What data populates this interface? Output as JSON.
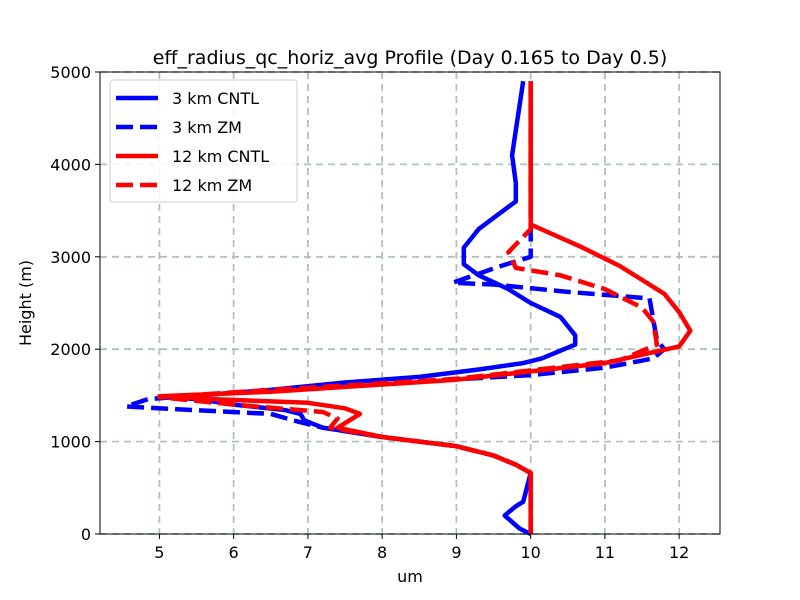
{
  "chart_data": {
    "type": "line",
    "title": "eff_radius_qc_horiz_avg Profile (Day 0.165 to Day 0.5)",
    "xlabel": "um",
    "ylabel": "Height (m)",
    "xlim": [
      4.2,
      12.55
    ],
    "ylim": [
      0,
      5000
    ],
    "xticks": [
      5,
      6,
      7,
      8,
      9,
      10,
      11,
      12
    ],
    "yticks": [
      0,
      1000,
      2000,
      3000,
      4000,
      5000
    ],
    "grid": true,
    "legend": "upper-left",
    "series": [
      {
        "name": "3 km CNTL",
        "color": "#0000ff",
        "linestyle": "solid",
        "x": [
          10.0,
          9.85,
          9.65,
          9.8,
          9.9,
          10.0,
          9.8,
          9.5,
          9.0,
          8.0,
          7.2,
          6.95,
          6.9,
          6.7,
          6.0,
          5.6,
          5.2,
          6.5,
          7.5,
          8.5,
          9.3,
          9.9,
          10.15,
          10.45,
          10.6,
          10.6,
          10.4,
          10.0,
          9.7,
          9.3,
          9.1,
          9.1,
          9.3,
          9.55,
          9.8,
          9.8,
          9.75,
          9.9
        ],
        "y": [
          0,
          60,
          200,
          300,
          350,
          660,
          750,
          850,
          950,
          1050,
          1150,
          1230,
          1300,
          1340,
          1400,
          1450,
          1480,
          1560,
          1640,
          1700,
          1780,
          1850,
          1900,
          2000,
          2050,
          2150,
          2350,
          2500,
          2650,
          2800,
          2920,
          3100,
          3300,
          3450,
          3600,
          3800,
          4100,
          4900
        ]
      },
      {
        "name": "3 km ZM",
        "color": "#0000ff",
        "linestyle": "dashed",
        "x": [
          10.0,
          10.0,
          9.8,
          9.5,
          9.0,
          8.0,
          7.2,
          6.8,
          6.5,
          5.5,
          4.55,
          4.85,
          6.5,
          8.5,
          10.0,
          11.0,
          11.65,
          11.8,
          11.7,
          11.6,
          10.5,
          9.5,
          8.95,
          9.6,
          10.0,
          10.0,
          10.0,
          10.0
        ],
        "y": [
          0,
          660,
          750,
          850,
          950,
          1050,
          1150,
          1230,
          1300,
          1340,
          1380,
          1460,
          1560,
          1650,
          1720,
          1800,
          1900,
          2000,
          2100,
          2550,
          2620,
          2700,
          2720,
          2900,
          3000,
          3200,
          3600,
          4900
        ]
      },
      {
        "name": "12 km CNTL",
        "color": "#ff0000",
        "linestyle": "solid",
        "x": [
          10.0,
          10.0,
          9.8,
          9.5,
          9.0,
          8.0,
          7.4,
          7.7,
          7.5,
          7.0,
          5.7,
          5.0,
          6.5,
          9.0,
          11.0,
          12.0,
          12.15,
          12.0,
          11.8,
          11.5,
          11.2,
          10.7,
          10.0,
          10.0,
          10.0
        ],
        "y": [
          0,
          660,
          750,
          850,
          950,
          1050,
          1150,
          1300,
          1360,
          1420,
          1460,
          1490,
          1540,
          1670,
          1850,
          2030,
          2200,
          2400,
          2600,
          2750,
          2900,
          3100,
          3350,
          3500,
          4900
        ]
      },
      {
        "name": "12 km ZM",
        "color": "#ff0000",
        "linestyle": "dashed",
        "x": [
          10.0,
          10.0,
          9.8,
          9.5,
          9.0,
          8.0,
          7.3,
          7.4,
          7.2,
          6.0,
          5.0,
          6.5,
          9.0,
          11.2,
          11.7,
          11.65,
          11.5,
          11.0,
          10.4,
          9.8,
          9.7,
          10.0,
          10.0,
          10.0
        ],
        "y": [
          0,
          660,
          750,
          850,
          950,
          1050,
          1150,
          1250,
          1320,
          1400,
          1480,
          1560,
          1680,
          1880,
          2050,
          2300,
          2450,
          2650,
          2800,
          2880,
          3050,
          3300,
          3600,
          4900
        ]
      }
    ]
  }
}
